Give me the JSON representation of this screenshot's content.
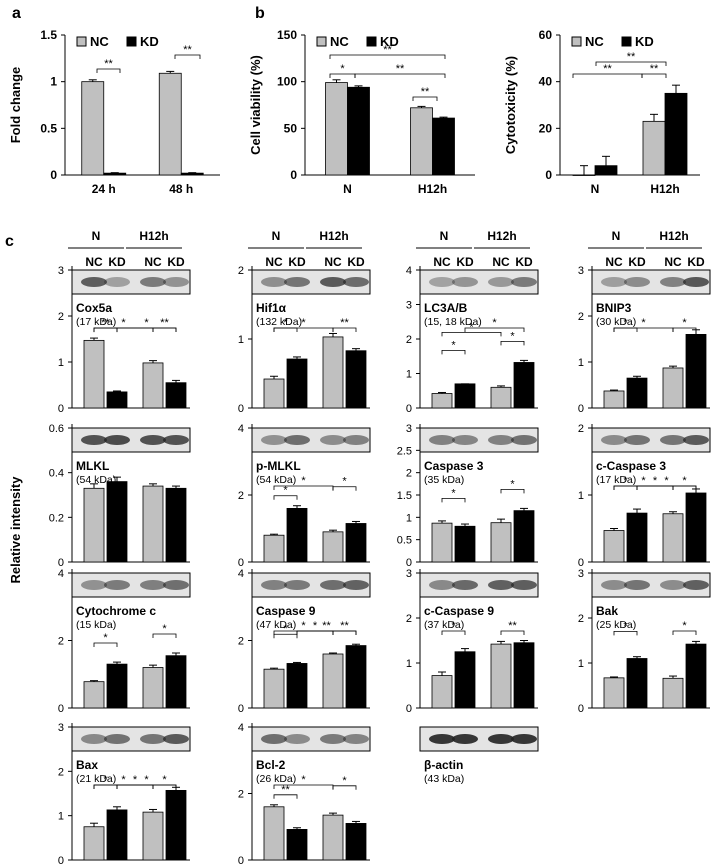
{
  "colors": {
    "nc": "#c0c0c0",
    "kd": "#000000",
    "axis": "#000000",
    "blot_bg": "#e4e4e4",
    "band": "#222222"
  },
  "figure": {
    "ylabel_c": "Relative intensity"
  },
  "chart_data": [
    {
      "id": "a",
      "panel_label": "a",
      "type": "bar",
      "ylabel": "Fold change",
      "categories": [
        "24 h",
        "48 h"
      ],
      "series": [
        {
          "name": "NC",
          "values": [
            1.0,
            1.09
          ],
          "errors": [
            0.02,
            0.02
          ]
        },
        {
          "name": "KD",
          "values": [
            0.02,
            0.02
          ],
          "errors": [
            0.005,
            0.005
          ]
        }
      ],
      "ylim": [
        0,
        1.5
      ],
      "yticks": [
        "0",
        "0.5",
        "1",
        "1.5"
      ],
      "legend": [
        "NC",
        "KD"
      ],
      "annotations": [
        "**",
        "**"
      ]
    },
    {
      "id": "b1",
      "panel_label": "b",
      "type": "bar",
      "ylabel": "Cell viability (%)",
      "categories": [
        "N",
        "H12h"
      ],
      "series": [
        {
          "name": "NC",
          "values": [
            99,
            72
          ],
          "errors": [
            3,
            1.5
          ]
        },
        {
          "name": "KD",
          "values": [
            94,
            61
          ],
          "errors": [
            1.5,
            1
          ]
        }
      ],
      "ylim": [
        0,
        150
      ],
      "yticks": [
        "0",
        "50",
        "100",
        "150"
      ],
      "legend": [
        "NC",
        "KD"
      ],
      "annotations": [
        "**",
        "*",
        "**",
        "**"
      ]
    },
    {
      "id": "b2",
      "type": "bar",
      "ylabel": "Cytotoxicity (%)",
      "categories": [
        "N",
        "H12h"
      ],
      "series": [
        {
          "name": "NC",
          "values": [
            0,
            23
          ],
          "errors": [
            4,
            3
          ]
        },
        {
          "name": "KD",
          "values": [
            4,
            35
          ],
          "errors": [
            4,
            3.5
          ]
        }
      ],
      "ylim": [
        0,
        60
      ],
      "yticks": [
        "0",
        "20",
        "40",
        "60"
      ],
      "legend": [
        "NC",
        "KD"
      ],
      "annotations": [
        "**",
        "**",
        "**"
      ]
    },
    {
      "id": "Cox5a",
      "panel_label": "c",
      "type": "bar",
      "protein": "Cox5a",
      "mw": "(17 kDa)",
      "groups": [
        "N",
        "H12h"
      ],
      "subgroups": [
        "NC",
        "KD",
        "NC",
        "KD"
      ],
      "values": [
        1.47,
        0.35,
        0.98,
        0.55
      ],
      "errors": [
        0.05,
        0.02,
        0.05,
        0.05
      ],
      "ylim": [
        0,
        3
      ],
      "yticks": [
        "0",
        "1",
        "2",
        "3"
      ],
      "annotations": [
        "**",
        "**",
        "*",
        "*"
      ]
    },
    {
      "id": "Hif1a",
      "type": "bar",
      "protein": "Hif1α",
      "mw": "(132 kDa)",
      "groups": [
        "N",
        "H12h"
      ],
      "subgroups": [
        "NC",
        "KD",
        "NC",
        "KD"
      ],
      "values": [
        0.42,
        0.71,
        1.03,
        0.83
      ],
      "errors": [
        0.04,
        0.03,
        0.05,
        0.03
      ],
      "ylim": [
        0,
        2
      ],
      "yticks": [
        "0",
        "1",
        "2"
      ],
      "annotations": [
        "*",
        "**",
        "*"
      ]
    },
    {
      "id": "LC3AB",
      "type": "bar",
      "protein": "LC3A/B",
      "mw": "(15, 18 kDa)",
      "groups": [
        "N",
        "H12h"
      ],
      "subgroups": [
        "NC",
        "KD",
        "NC",
        "KD"
      ],
      "values": [
        0.42,
        0.7,
        0.6,
        1.32
      ],
      "errors": [
        0.03,
        0.0,
        0.04,
        0.06
      ],
      "ylim": [
        0,
        4
      ],
      "yticks": [
        "0",
        "1",
        "2",
        "3",
        "4"
      ],
      "annotations": [
        "*",
        "*",
        "*",
        "*"
      ]
    },
    {
      "id": "BNIP3",
      "type": "bar",
      "protein": "BNIP3",
      "mw": "(30 kDa)",
      "groups": [
        "N",
        "H12h"
      ],
      "subgroups": [
        "NC",
        "KD",
        "NC",
        "KD"
      ],
      "values": [
        0.37,
        0.65,
        0.87,
        1.6
      ],
      "errors": [
        0.02,
        0.04,
        0.04,
        0.1
      ],
      "ylim": [
        0,
        3
      ],
      "yticks": [
        "0",
        "1",
        "2",
        "3"
      ],
      "annotations": [
        "*",
        "*",
        "*"
      ]
    },
    {
      "id": "MLKL",
      "type": "bar",
      "protein": "MLKL",
      "mw": "(54 kDa)",
      "groups": [
        "N",
        "H12h"
      ],
      "subgroups": [
        "NC",
        "KD",
        "NC",
        "KD"
      ],
      "values": [
        0.33,
        0.36,
        0.34,
        0.33
      ],
      "errors": [
        0.02,
        0.02,
        0.01,
        0.01
      ],
      "ylim": [
        0,
        0.6
      ],
      "yticks": [
        "0",
        "0.2",
        "0.4",
        "0.6"
      ],
      "annotations": []
    },
    {
      "id": "pMLKL",
      "type": "bar",
      "protein": "p-MLKL",
      "mw": "(54 kDa)",
      "groups": [
        "N",
        "H12h"
      ],
      "subgroups": [
        "NC",
        "KD",
        "NC",
        "KD"
      ],
      "values": [
        0.8,
        1.6,
        0.9,
        1.15
      ],
      "errors": [
        0.03,
        0.08,
        0.05,
        0.06
      ],
      "ylim": [
        0,
        4
      ],
      "yticks": [
        "0",
        "2",
        "4"
      ],
      "annotations": [
        "*",
        "*",
        "*"
      ]
    },
    {
      "id": "Caspase3",
      "type": "bar",
      "protein": "Caspase  3",
      "mw": "(35 kDa)",
      "groups": [
        "N",
        "H12h"
      ],
      "subgroups": [
        "NC",
        "KD",
        "NC",
        "KD"
      ],
      "values": [
        0.87,
        0.8,
        0.88,
        1.15
      ],
      "errors": [
        0.05,
        0.05,
        0.08,
        0.05
      ],
      "ylim": [
        0,
        3
      ],
      "yticks": [
        "0",
        "0.5",
        "1",
        "1.5",
        "2",
        "2.5",
        "3"
      ],
      "annotations": [
        "*",
        "*"
      ]
    },
    {
      "id": "cCaspase3",
      "type": "bar",
      "protein": "c-Caspase  3",
      "mw": "(17 kDa)",
      "groups": [
        "N",
        "H12h"
      ],
      "subgroups": [
        "NC",
        "KD",
        "NC",
        "KD"
      ],
      "values": [
        0.47,
        0.73,
        0.72,
        1.03
      ],
      "errors": [
        0.03,
        0.06,
        0.03,
        0.06
      ],
      "ylim": [
        0,
        2
      ],
      "yticks": [
        "0",
        "1",
        "2"
      ],
      "annotations": [
        "*",
        "*",
        "*",
        "*",
        "*"
      ]
    },
    {
      "id": "CytochromeC",
      "type": "bar",
      "protein": "Cytochrome  c",
      "mw": "(15 kDa)",
      "groups": [
        "N",
        "H12h"
      ],
      "subgroups": [
        "NC",
        "KD",
        "NC",
        "KD"
      ],
      "values": [
        0.78,
        1.3,
        1.2,
        1.55
      ],
      "errors": [
        0.03,
        0.06,
        0.07,
        0.08
      ],
      "ylim": [
        0,
        4
      ],
      "yticks": [
        "0",
        "2",
        "4"
      ],
      "annotations": [
        "*",
        "*"
      ]
    },
    {
      "id": "Caspase9",
      "type": "bar",
      "protein": "Caspase  9",
      "mw": "(47 kDa)",
      "groups": [
        "N",
        "H12h"
      ],
      "subgroups": [
        "NC",
        "KD",
        "NC",
        "KD"
      ],
      "values": [
        1.15,
        1.32,
        1.6,
        1.85
      ],
      "errors": [
        0.03,
        0.03,
        0.03,
        0.04
      ],
      "ylim": [
        0,
        4
      ],
      "yticks": [
        "0",
        "2",
        "4"
      ],
      "annotations": [
        "*",
        "**",
        "*",
        "**",
        "*"
      ]
    },
    {
      "id": "cCaspase9",
      "type": "bar",
      "protein": "c-Caspase  9",
      "mw": "(37 kDa)",
      "groups": [
        "N",
        "H12h"
      ],
      "subgroups": [
        "NC",
        "KD",
        "NC",
        "KD"
      ],
      "values": [
        0.72,
        1.25,
        1.42,
        1.45
      ],
      "errors": [
        0.08,
        0.07,
        0.06,
        0.05
      ],
      "ylim": [
        0,
        3
      ],
      "yticks": [
        "0",
        "1",
        "2",
        "3"
      ],
      "annotations": [
        "*",
        "**"
      ]
    },
    {
      "id": "Bak",
      "type": "bar",
      "protein": "Bak",
      "mw": "(25 kDa)",
      "groups": [
        "N",
        "H12h"
      ],
      "subgroups": [
        "NC",
        "KD",
        "NC",
        "KD"
      ],
      "values": [
        0.67,
        1.1,
        0.66,
        1.42
      ],
      "errors": [
        0.02,
        0.04,
        0.05,
        0.06
      ],
      "ylim": [
        0,
        3
      ],
      "yticks": [
        "0",
        "1",
        "2",
        "3"
      ],
      "annotations": [
        "*",
        "*"
      ]
    },
    {
      "id": "Bax",
      "type": "bar",
      "protein": "Bax",
      "mw": "(21 kDa)",
      "groups": [
        "N",
        "H12h"
      ],
      "subgroups": [
        "NC",
        "KD",
        "NC",
        "KD"
      ],
      "values": [
        0.75,
        1.13,
        1.08,
        1.57
      ],
      "errors": [
        0.08,
        0.07,
        0.06,
        0.07
      ],
      "ylim": [
        0,
        3
      ],
      "yticks": [
        "0",
        "1",
        "2",
        "3"
      ],
      "annotations": [
        "*",
        "*",
        "*",
        "*",
        "*"
      ]
    },
    {
      "id": "Bcl2",
      "type": "bar",
      "protein": "Bcl-2",
      "mw": "(26 kDa)",
      "groups": [
        "N",
        "H12h"
      ],
      "subgroups": [
        "NC",
        "KD",
        "NC",
        "KD"
      ],
      "values": [
        1.6,
        0.92,
        1.35,
        1.1
      ],
      "errors": [
        0.06,
        0.05,
        0.06,
        0.06
      ],
      "ylim": [
        0,
        4
      ],
      "yticks": [
        "0",
        "2",
        "4"
      ],
      "annotations": [
        "**",
        "*",
        "*"
      ]
    },
    {
      "id": "bactin",
      "type": "blot",
      "protein": "β-actin",
      "mw": "(43 kDa)",
      "groups": [
        "N",
        "H12h"
      ],
      "subgroups": [
        "NC",
        "KD",
        "NC",
        "KD"
      ]
    }
  ]
}
